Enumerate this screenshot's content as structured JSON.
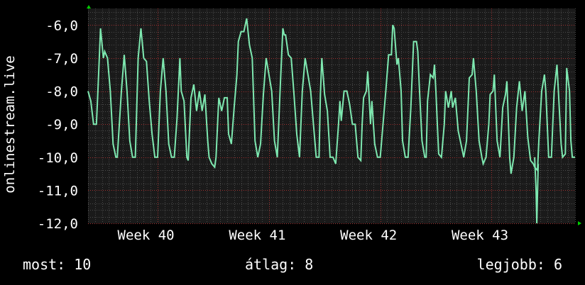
{
  "chart_data": {
    "type": "line",
    "ylabel": "onlinestream.live",
    "ylim": [
      -12.0,
      -5.5
    ],
    "y_ticks": [
      "-6,0",
      "-7,0",
      "-8,0",
      "-9,0",
      "-10,0",
      "-11,0",
      "-12,0"
    ],
    "y_tick_values": [
      -6,
      -7,
      -8,
      -9,
      -10,
      -11,
      -12
    ],
    "x_tick_labels": [
      "Week 40",
      "Week 41",
      "Week 42",
      "Week 43"
    ],
    "x_tick_positions": [
      0.5,
      4.5,
      8.5,
      12.5
    ],
    "x_range": [
      0,
      17.5
    ],
    "grid": true,
    "series": [
      {
        "color": "#7ee8b0",
        "points": [
          [
            0.0,
            -8.0
          ],
          [
            0.1,
            -8.3
          ],
          [
            0.2,
            -9.0
          ],
          [
            0.3,
            -9.0
          ],
          [
            0.35,
            -8.1
          ],
          [
            0.45,
            -6.1
          ],
          [
            0.55,
            -7.0
          ],
          [
            0.6,
            -6.8
          ],
          [
            0.7,
            -7.0
          ],
          [
            0.8,
            -8.0
          ],
          [
            0.9,
            -9.6
          ],
          [
            1.0,
            -10.0
          ],
          [
            1.05,
            -10.0
          ],
          [
            1.2,
            -8.0
          ],
          [
            1.3,
            -6.9
          ],
          [
            1.4,
            -8.0
          ],
          [
            1.5,
            -9.5
          ],
          [
            1.6,
            -10.0
          ],
          [
            1.7,
            -10.0
          ],
          [
            1.8,
            -7.0
          ],
          [
            1.9,
            -6.1
          ],
          [
            2.0,
            -7.0
          ],
          [
            2.1,
            -7.1
          ],
          [
            2.2,
            -8.3
          ],
          [
            2.3,
            -9.3
          ],
          [
            2.4,
            -10.0
          ],
          [
            2.5,
            -10.0
          ],
          [
            2.6,
            -8.0
          ],
          [
            2.7,
            -7.0
          ],
          [
            2.8,
            -8.0
          ],
          [
            2.9,
            -9.6
          ],
          [
            3.0,
            -10.0
          ],
          [
            3.1,
            -10.0
          ],
          [
            3.2,
            -8.8
          ],
          [
            3.3,
            -7.0
          ],
          [
            3.35,
            -8.0
          ],
          [
            3.45,
            -8.3
          ],
          [
            3.55,
            -10.0
          ],
          [
            3.6,
            -10.1
          ],
          [
            3.7,
            -8.2
          ],
          [
            3.8,
            -7.8
          ],
          [
            3.9,
            -8.6
          ],
          [
            4.0,
            -8.0
          ],
          [
            4.1,
            -8.6
          ],
          [
            4.2,
            -8.1
          ],
          [
            4.3,
            -9.5
          ],
          [
            4.35,
            -10.0
          ],
          [
            4.45,
            -10.2
          ],
          [
            4.55,
            -10.3
          ],
          [
            4.6,
            -10.0
          ],
          [
            4.7,
            -8.2
          ],
          [
            4.8,
            -8.6
          ],
          [
            4.9,
            -8.2
          ],
          [
            5.0,
            -8.2
          ],
          [
            5.05,
            -9.3
          ],
          [
            5.15,
            -9.6
          ],
          [
            5.25,
            -8.5
          ],
          [
            5.35,
            -7.5
          ],
          [
            5.4,
            -6.5
          ],
          [
            5.5,
            -6.2
          ],
          [
            5.6,
            -6.2
          ],
          [
            5.7,
            -5.8
          ],
          [
            5.8,
            -6.6
          ],
          [
            5.9,
            -7.0
          ],
          [
            6.0,
            -9.5
          ],
          [
            6.1,
            -10.0
          ],
          [
            6.2,
            -9.6
          ],
          [
            6.3,
            -8.1
          ],
          [
            6.4,
            -7.0
          ],
          [
            6.5,
            -7.5
          ],
          [
            6.6,
            -8.0
          ],
          [
            6.7,
            -9.5
          ],
          [
            6.8,
            -10.0
          ],
          [
            6.9,
            -8.0
          ],
          [
            7.0,
            -6.1
          ],
          [
            7.05,
            -6.3
          ],
          [
            7.1,
            -6.3
          ],
          [
            7.2,
            -6.9
          ],
          [
            7.3,
            -7.0
          ],
          [
            7.4,
            -8.1
          ],
          [
            7.5,
            -9.3
          ],
          [
            7.6,
            -10.0
          ],
          [
            7.7,
            -8.0
          ],
          [
            7.8,
            -7.0
          ],
          [
            7.9,
            -7.5
          ],
          [
            8.0,
            -8.0
          ],
          [
            8.1,
            -9.0
          ],
          [
            8.2,
            -10.0
          ],
          [
            8.3,
            -10.0
          ],
          [
            8.35,
            -8.1
          ],
          [
            8.4,
            -7.0
          ],
          [
            8.5,
            -8.1
          ],
          [
            8.6,
            -8.6
          ],
          [
            8.7,
            -10.0
          ],
          [
            8.8,
            -10.0
          ],
          [
            8.9,
            -10.2
          ],
          [
            9.0,
            -9.0
          ],
          [
            9.05,
            -8.3
          ],
          [
            9.1,
            -8.9
          ],
          [
            9.2,
            -8.0
          ],
          [
            9.3,
            -8.0
          ],
          [
            9.4,
            -8.4
          ],
          [
            9.5,
            -9.0
          ],
          [
            9.6,
            -9.0
          ],
          [
            9.7,
            -10.0
          ],
          [
            9.8,
            -10.1
          ],
          [
            9.85,
            -9.0
          ],
          [
            9.9,
            -8.2
          ],
          [
            10.0,
            -8.0
          ],
          [
            10.05,
            -7.4
          ],
          [
            10.15,
            -9.0
          ],
          [
            10.2,
            -8.3
          ],
          [
            10.3,
            -9.6
          ],
          [
            10.4,
            -10.0
          ],
          [
            10.5,
            -10.0
          ],
          [
            10.6,
            -9.0
          ],
          [
            10.7,
            -8.0
          ],
          [
            10.8,
            -6.9
          ],
          [
            10.9,
            -6.9
          ],
          [
            10.95,
            -6.0
          ],
          [
            11.0,
            -6.1
          ],
          [
            11.1,
            -7.2
          ],
          [
            11.15,
            -7.0
          ],
          [
            11.25,
            -8.0
          ],
          [
            11.3,
            -9.5
          ],
          [
            11.4,
            -10.0
          ],
          [
            11.5,
            -10.0
          ],
          [
            11.6,
            -8.5
          ],
          [
            11.7,
            -6.5
          ],
          [
            11.8,
            -6.5
          ],
          [
            11.85,
            -6.8
          ],
          [
            11.9,
            -7.8
          ],
          [
            12.0,
            -9.5
          ],
          [
            12.1,
            -10.0
          ],
          [
            12.15,
            -10.0
          ],
          [
            12.2,
            -8.3
          ],
          [
            12.3,
            -7.5
          ],
          [
            12.4,
            -7.6
          ],
          [
            12.45,
            -7.2
          ],
          [
            12.5,
            -8.0
          ],
          [
            12.55,
            -9.0
          ],
          [
            12.6,
            -9.9
          ],
          [
            12.7,
            -10.0
          ],
          [
            12.8,
            -9.0
          ],
          [
            12.85,
            -8.0
          ],
          [
            12.95,
            -8.5
          ],
          [
            13.05,
            -8.0
          ],
          [
            13.1,
            -8.5
          ],
          [
            13.2,
            -8.2
          ],
          [
            13.3,
            -9.2
          ],
          [
            13.4,
            -9.6
          ],
          [
            13.5,
            -10.0
          ],
          [
            13.6,
            -9.5
          ],
          [
            13.7,
            -7.6
          ],
          [
            13.8,
            -7.5
          ],
          [
            13.85,
            -7.0
          ],
          [
            13.95,
            -8.0
          ],
          [
            14.05,
            -9.5
          ],
          [
            14.15,
            -10.0
          ],
          [
            14.2,
            -10.2
          ],
          [
            14.3,
            -10.0
          ],
          [
            14.4,
            -9.0
          ],
          [
            14.45,
            -8.1
          ],
          [
            14.55,
            -8.0
          ],
          [
            14.6,
            -7.5
          ],
          [
            14.7,
            -9.5
          ],
          [
            14.8,
            -10.0
          ],
          [
            14.9,
            -8.5
          ],
          [
            15.0,
            -8.1
          ],
          [
            15.05,
            -7.7
          ],
          [
            15.15,
            -10.0
          ],
          [
            15.2,
            -10.5
          ],
          [
            15.3,
            -10.0
          ],
          [
            15.4,
            -8.5
          ],
          [
            15.5,
            -7.7
          ],
          [
            15.6,
            -8.6
          ],
          [
            15.7,
            -8.0
          ],
          [
            15.8,
            -9.4
          ],
          [
            15.9,
            -10.1
          ],
          [
            16.0,
            -10.2
          ],
          [
            16.05,
            -10.3
          ],
          [
            16.15,
            -10.4
          ],
          [
            16.2,
            -9.5
          ],
          [
            16.3,
            -8.0
          ],
          [
            16.4,
            -7.5
          ],
          [
            16.45,
            -8.0
          ],
          [
            16.5,
            -9.0
          ],
          [
            16.55,
            -10.0
          ],
          [
            16.65,
            -10.0
          ],
          [
            16.7,
            -9.0
          ],
          [
            16.75,
            -8.0
          ],
          [
            16.85,
            -7.2
          ],
          [
            16.9,
            -8.0
          ],
          [
            17.0,
            -9.6
          ],
          [
            17.05,
            -10.0
          ],
          [
            17.15,
            -9.9
          ],
          [
            17.2,
            -7.3
          ],
          [
            17.3,
            -8.0
          ],
          [
            17.35,
            -9.5
          ],
          [
            17.4,
            -10.0
          ],
          [
            17.5,
            -10.0
          ]
        ]
      }
    ]
  },
  "stats": {
    "now_label": "most:",
    "now_value": "10",
    "avg_label": "átlag:",
    "avg_value": "8",
    "max_label": "legjobb:",
    "max_value": "6"
  },
  "colors": {
    "background": "#000000",
    "plot_background": "#1a1a1a",
    "grid_minor": "#4a4a4a",
    "grid_major": "#a03030",
    "line": "#7ee8b0",
    "axis_arrow": "#00cc00"
  }
}
